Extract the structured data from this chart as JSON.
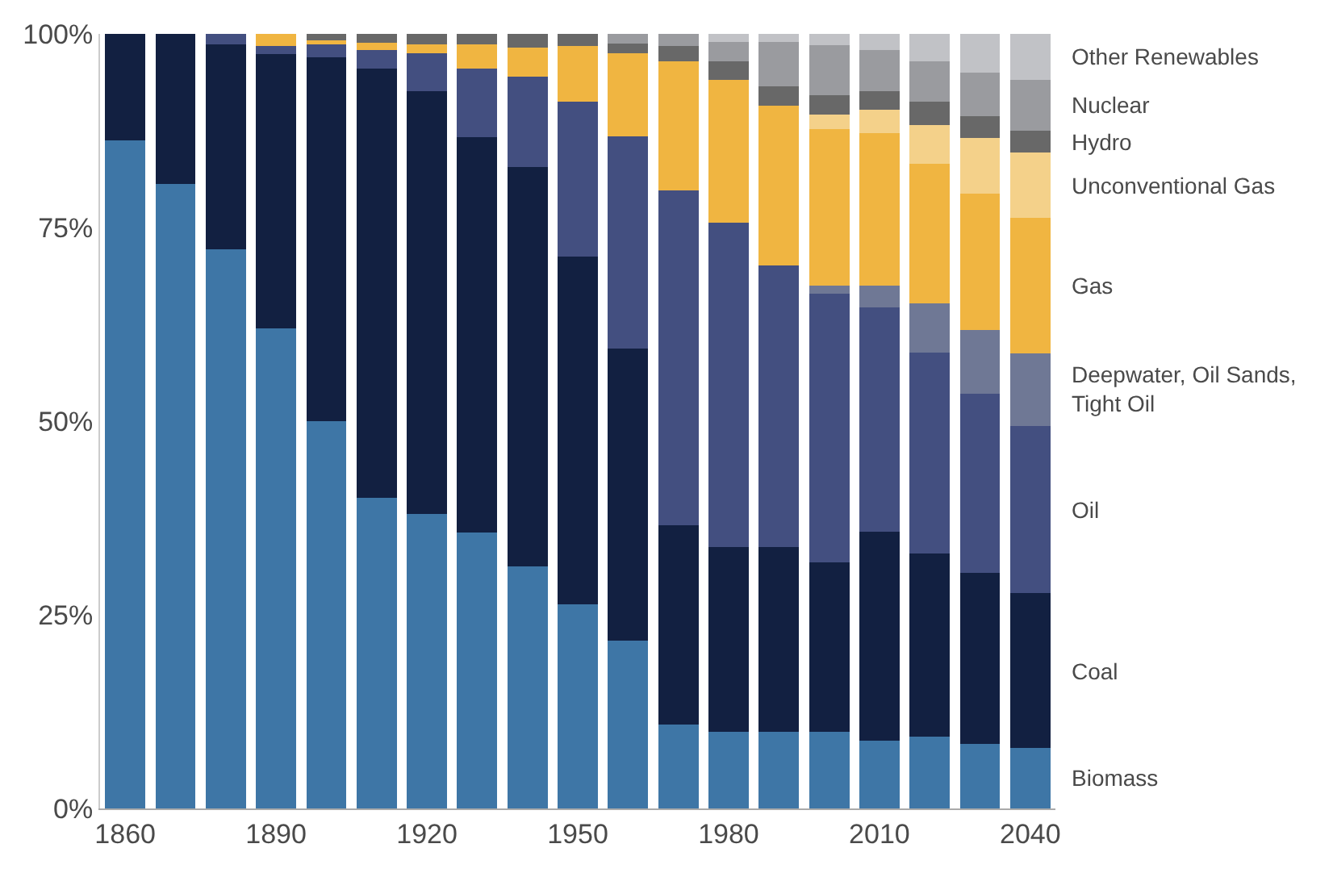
{
  "chart_data": {
    "type": "bar",
    "stacked": true,
    "categories": [
      "1860",
      null,
      null,
      "1890",
      null,
      null,
      "1920",
      null,
      null,
      "1950",
      null,
      null,
      "1980",
      null,
      null,
      "2010",
      null,
      null,
      "2040"
    ],
    "ylim": [
      0,
      100
    ],
    "yticks": [
      {
        "value": 0,
        "label": "0%"
      },
      {
        "value": 25,
        "label": "25%"
      },
      {
        "value": 50,
        "label": "50%"
      },
      {
        "value": 75,
        "label": "75%"
      },
      {
        "value": 100,
        "label": "100%"
      }
    ],
    "legend": false,
    "series": [
      {
        "name": "Biomass",
        "color": "#3e76a6",
        "values": [
          86.3,
          80.6,
          72.2,
          62.0,
          50.0,
          40.1,
          38.0,
          35.6,
          31.3,
          26.4,
          21.7,
          10.8,
          9.9,
          9.9,
          9.9,
          8.8,
          9.3,
          8.3,
          7.8
        ]
      },
      {
        "name": "Coal",
        "color": "#122041",
        "values": [
          13.7,
          19.4,
          26.4,
          35.4,
          47.0,
          55.4,
          54.6,
          51.1,
          51.5,
          44.8,
          37.7,
          25.8,
          23.8,
          23.8,
          21.9,
          26.9,
          23.6,
          22.1,
          20.0
        ]
      },
      {
        "name": "Oil",
        "color": "#434f80",
        "values": [
          null,
          null,
          1.4,
          1.0,
          1.6,
          2.4,
          4.9,
          8.8,
          11.7,
          20.0,
          27.4,
          43.2,
          41.9,
          36.4,
          34.7,
          29.0,
          26.0,
          23.1,
          21.6
        ]
      },
      {
        "name": "Deepwater, Oil Sands,\nTight Oil",
        "color": "#6f7895",
        "values": [
          null,
          null,
          null,
          null,
          null,
          null,
          null,
          null,
          null,
          null,
          null,
          null,
          null,
          null,
          1.0,
          2.8,
          6.3,
          8.3,
          9.4
        ]
      },
      {
        "name": "Gas",
        "color": "#f0b541",
        "values": [
          null,
          null,
          null,
          1.6,
          0.6,
          1.0,
          1.1,
          3.1,
          3.7,
          7.2,
          10.7,
          16.7,
          18.5,
          20.6,
          20.2,
          19.7,
          18.0,
          17.6,
          17.5
        ]
      },
      {
        "name": "Unconventional Gas",
        "color": "#f4d18a",
        "values": [
          null,
          null,
          null,
          null,
          null,
          null,
          null,
          null,
          null,
          null,
          null,
          null,
          null,
          null,
          1.9,
          3.0,
          5.0,
          7.2,
          8.4
        ]
      },
      {
        "name": "Hydro",
        "color": "#686868",
        "values": [
          null,
          null,
          null,
          null,
          0.8,
          1.1,
          1.4,
          1.4,
          1.8,
          1.6,
          1.3,
          1.9,
          2.4,
          2.5,
          2.5,
          2.4,
          3.1,
          2.8,
          2.8
        ]
      },
      {
        "name": "Nuclear",
        "color": "#9a9b9f",
        "values": [
          null,
          null,
          null,
          null,
          null,
          null,
          null,
          null,
          null,
          null,
          1.2,
          1.6,
          2.5,
          5.8,
          6.4,
          5.3,
          5.2,
          5.6,
          6.6
        ]
      },
      {
        "name": "Other Renewables",
        "color": "#c1c2c6",
        "values": [
          null,
          null,
          null,
          null,
          null,
          null,
          null,
          null,
          null,
          null,
          null,
          null,
          1.0,
          1.0,
          1.5,
          2.1,
          3.5,
          5.0,
          5.9
        ]
      }
    ]
  }
}
